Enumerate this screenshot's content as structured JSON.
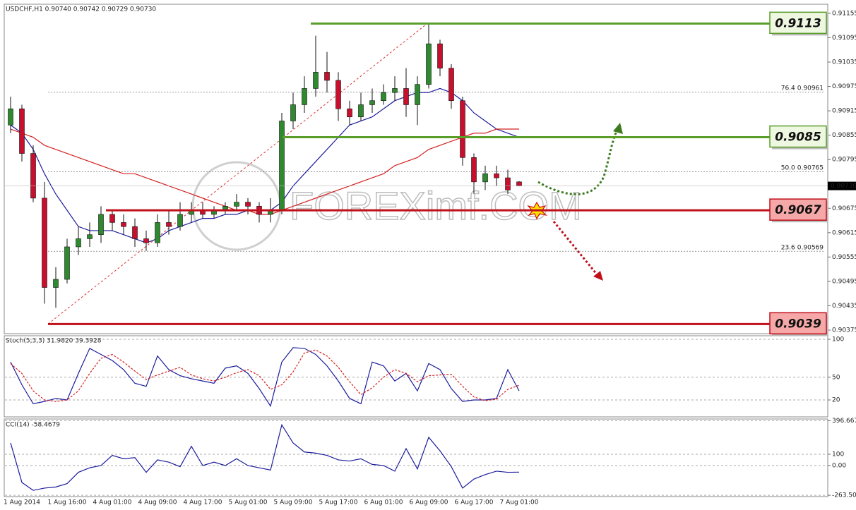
{
  "chart_data": [
    {
      "type": "candlestick",
      "title": "USDCHF,H1 0.90740 0.90742 0.90729 0.90730",
      "categories": [
        "1 Aug 2014",
        null,
        null,
        null,
        null,
        "1 Aug 16:00",
        null,
        null,
        null,
        "4 Aug 01:00",
        null,
        null,
        null,
        "4 Aug 09:00",
        null,
        null,
        null,
        "4 Aug 17:00",
        null,
        null,
        null,
        "5 Aug 01:00",
        null,
        null,
        null,
        "5 Aug 09:00",
        null,
        null,
        null,
        "5 Aug 17:00",
        null,
        null,
        null,
        "6 Aug 01:00",
        null,
        null,
        null,
        "6 Aug 09:00",
        null,
        null,
        null,
        "6 Aug 17:00",
        null,
        null,
        null,
        "7 Aug 01:00"
      ],
      "open": [
        0.9088,
        0.9092,
        0.9081,
        0.907,
        0.9048,
        0.905,
        0.9058,
        0.906,
        0.9061,
        0.9066,
        0.9064,
        0.9063,
        0.906,
        0.9059,
        0.9064,
        0.9063,
        0.9066,
        0.9067,
        0.9066,
        0.9067,
        0.9068,
        0.9069,
        0.9068,
        0.9066,
        0.9067,
        0.9089,
        0.9093,
        0.9097,
        0.9101,
        0.9099,
        0.9092,
        0.909,
        0.9093,
        0.9094,
        0.9096,
        0.9097,
        0.9093,
        0.9098,
        0.9108,
        0.9102,
        0.9094,
        0.908,
        0.9074,
        0.9076,
        0.9075,
        0.9074
      ],
      "high": [
        0.9095,
        0.9093,
        0.9083,
        0.9074,
        0.9053,
        0.906,
        0.9063,
        0.9064,
        0.9068,
        0.9067,
        0.9066,
        0.9065,
        0.9062,
        0.9066,
        0.9067,
        0.9069,
        0.9069,
        0.9069,
        0.9068,
        0.9069,
        0.9071,
        0.907,
        0.9069,
        0.907,
        0.9091,
        0.9096,
        0.91,
        0.911,
        0.9106,
        0.9101,
        0.9094,
        0.9096,
        0.9097,
        0.9098,
        0.91,
        0.9102,
        0.91,
        0.9113,
        0.9109,
        0.9103,
        0.9095,
        0.9081,
        0.9078,
        0.9078,
        0.9077,
        0.90742
      ],
      "low": [
        0.9086,
        0.9079,
        0.9069,
        0.9044,
        0.9043,
        0.9049,
        0.9056,
        0.9058,
        0.9059,
        0.9062,
        0.9061,
        0.9058,
        0.9057,
        0.9058,
        0.9061,
        0.9062,
        0.9064,
        0.9065,
        0.9065,
        0.9066,
        0.9067,
        0.9066,
        0.9064,
        0.9064,
        0.9066,
        0.9087,
        0.9091,
        0.9095,
        0.9096,
        0.9089,
        0.9088,
        0.9089,
        0.9091,
        0.9093,
        0.9094,
        0.909,
        0.9088,
        0.9097,
        0.91,
        0.9092,
        0.9078,
        0.9071,
        0.9072,
        0.9073,
        0.9071,
        0.90729
      ],
      "close": [
        0.9092,
        0.9081,
        0.907,
        0.9048,
        0.905,
        0.9058,
        0.906,
        0.9061,
        0.9066,
        0.9064,
        0.9063,
        0.906,
        0.9059,
        0.9064,
        0.9063,
        0.9066,
        0.9067,
        0.9066,
        0.9067,
        0.9068,
        0.9069,
        0.9068,
        0.9066,
        0.9067,
        0.9089,
        0.9093,
        0.9097,
        0.9101,
        0.9099,
        0.9092,
        0.909,
        0.9093,
        0.9094,
        0.9096,
        0.9097,
        0.9093,
        0.9098,
        0.9108,
        0.9102,
        0.9094,
        0.908,
        0.9074,
        0.9076,
        0.9075,
        0.9072,
        0.9073
      ],
      "up_color": "#2f8a2f",
      "down_color": "#c8102e",
      "series": [
        {
          "color": "#1c1c9c",
          "values": [
            0.9088,
            0.9086,
            0.9082,
            0.9076,
            0.9071,
            0.9067,
            0.9063,
            0.9062,
            0.9062,
            0.9062,
            0.9061,
            0.906,
            0.9059,
            0.906,
            0.9062,
            0.9063,
            0.9064,
            0.9065,
            0.9065,
            0.9066,
            0.9066,
            0.9067,
            0.9067,
            0.9067,
            0.9069,
            0.9073,
            0.9076,
            0.9079,
            0.9082,
            0.9085,
            0.9088,
            0.9089,
            0.909,
            0.9092,
            0.9094,
            0.9095,
            0.9096,
            0.9096,
            0.9097,
            0.9096,
            0.9094,
            0.9091,
            0.9089,
            0.9087,
            0.9086,
            0.9085
          ]
        },
        {
          "color": "#d42020",
          "values": [
            0.9087,
            0.9086,
            0.9085,
            0.9083,
            0.9082,
            0.9081,
            0.908,
            0.9079,
            0.9078,
            0.9077,
            0.9076,
            0.9076,
            0.9075,
            0.9074,
            0.9073,
            0.9072,
            0.9071,
            0.907,
            0.9069,
            0.9068,
            0.9067,
            0.9067,
            0.9066,
            0.9066,
            0.9067,
            0.9068,
            0.9069,
            0.907,
            0.9071,
            0.9072,
            0.9073,
            0.9074,
            0.9075,
            0.9076,
            0.9078,
            0.9079,
            0.908,
            0.9082,
            0.9083,
            0.9084,
            0.9085,
            0.9086,
            0.9086,
            0.9087,
            0.9087,
            0.9087
          ]
        }
      ],
      "ylim": [
        0.90368,
        0.91174
      ],
      "yticks": [
        0.91155,
        0.91095,
        0.91035,
        0.90975,
        0.90915,
        0.90855,
        0.90795,
        0.90675,
        0.90615,
        0.90555,
        0.90495,
        0.90435,
        0.90375
      ],
      "last_price": {
        "value": 0.9073,
        "label": "0.90730"
      },
      "levels": [
        {
          "value": 0.9113,
          "label": "0.9113",
          "color": "#5a9e2a"
        },
        {
          "value": 0.9085,
          "label": "0.9085",
          "color": "#5a9e2a"
        },
        {
          "value": 0.9067,
          "label": "0.9067",
          "color": "#c0101a"
        },
        {
          "value": 0.9039,
          "label": "0.9039",
          "color": "#c0101a"
        }
      ],
      "fib_levels": [
        {
          "ratio": "76.4",
          "value": 0.90961
        },
        {
          "ratio": "50.0",
          "value": 0.90765
        },
        {
          "ratio": "23.6",
          "value": 0.90569
        }
      ],
      "watermark": "FOREXimf.COM"
    },
    {
      "type": "line",
      "title": "Stoch(5,3,3) 31.9820 39.3928",
      "series": [
        {
          "color": "#1c1c9c",
          "values": [
            70,
            40,
            15,
            18,
            22,
            20,
            55,
            88,
            80,
            72,
            60,
            42,
            38,
            78,
            60,
            52,
            48,
            45,
            42,
            62,
            65,
            55,
            35,
            12,
            70,
            89,
            88,
            80,
            65,
            45,
            22,
            15,
            70,
            65,
            45,
            55,
            32,
            68,
            60,
            35,
            18,
            20,
            20,
            22,
            60,
            31.982
          ]
        },
        {
          "color": "#d42020",
          "dashed": true,
          "values": [
            68,
            55,
            32,
            20,
            18,
            20,
            32,
            55,
            75,
            80,
            70,
            58,
            47,
            53,
            58,
            63,
            53,
            48,
            45,
            50,
            56,
            60,
            52,
            34,
            40,
            57,
            82,
            86,
            78,
            63,
            44,
            27,
            36,
            50,
            60,
            55,
            44,
            52,
            53,
            54,
            38,
            24,
            19,
            21,
            34,
            39.3928
          ]
        }
      ],
      "ylim": [
        -1.4,
        102.8
      ],
      "yticks": [
        100,
        50,
        20
      ]
    },
    {
      "type": "line",
      "title": "CCI(14) -58.4679",
      "series": [
        {
          "color": "#1c1c9c",
          "values": [
            200,
            -150,
            -220,
            -200,
            -190,
            -160,
            -60,
            -20,
            0,
            90,
            60,
            70,
            -60,
            50,
            30,
            -10,
            170,
            0,
            30,
            0,
            60,
            0,
            -20,
            -40,
            360,
            200,
            120,
            110,
            90,
            50,
            40,
            60,
            10,
            0,
            -50,
            150,
            -30,
            250,
            130,
            -10,
            -200,
            -120,
            -80,
            -50,
            -60,
            -58.4679
          ]
        }
      ],
      "ylim": [
        -269,
        406
      ],
      "yticks": [
        396.6674,
        100,
        {
          "value": 0,
          "label": "0.00"
        },
        -263.506
      ]
    }
  ]
}
